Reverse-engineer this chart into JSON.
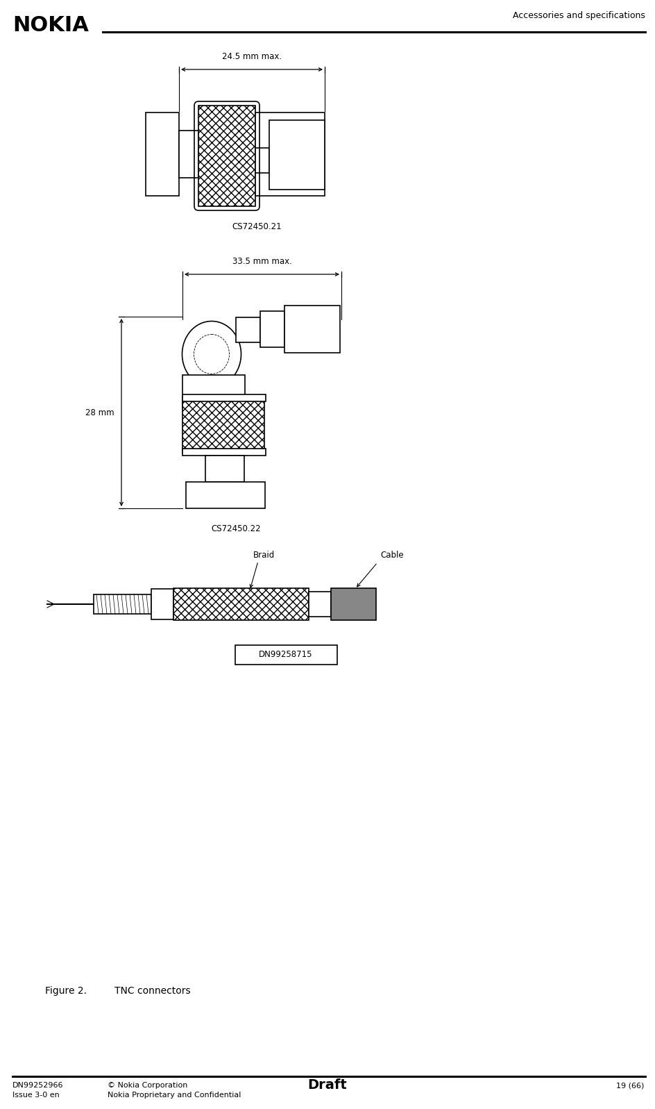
{
  "header_title": "Accessories and specifications",
  "nokia_logo": "NOKIA",
  "footer_left1": "DN99252966",
  "footer_left2": "Issue 3-0 en",
  "footer_mid1": "© Nokia Corporation",
  "footer_mid2": "Nokia Proprietary and Confidential",
  "footer_center": "Draft",
  "footer_right": "19 (66)",
  "figure_caption": "Figure 2.",
  "figure_caption2": "TNC connectors",
  "dim1_label": "24.5 mm max.",
  "dim2_label": "33.5 mm max.",
  "dim3_label": "28 mm",
  "label_cs1": "CS72450.21",
  "label_cs2": "CS72450.22",
  "label_dn": "DN99258715",
  "label_braid": "Braid",
  "label_cable": "Cable",
  "bg_color": "#ffffff",
  "line_color": "#000000",
  "gray_color": "#808080"
}
